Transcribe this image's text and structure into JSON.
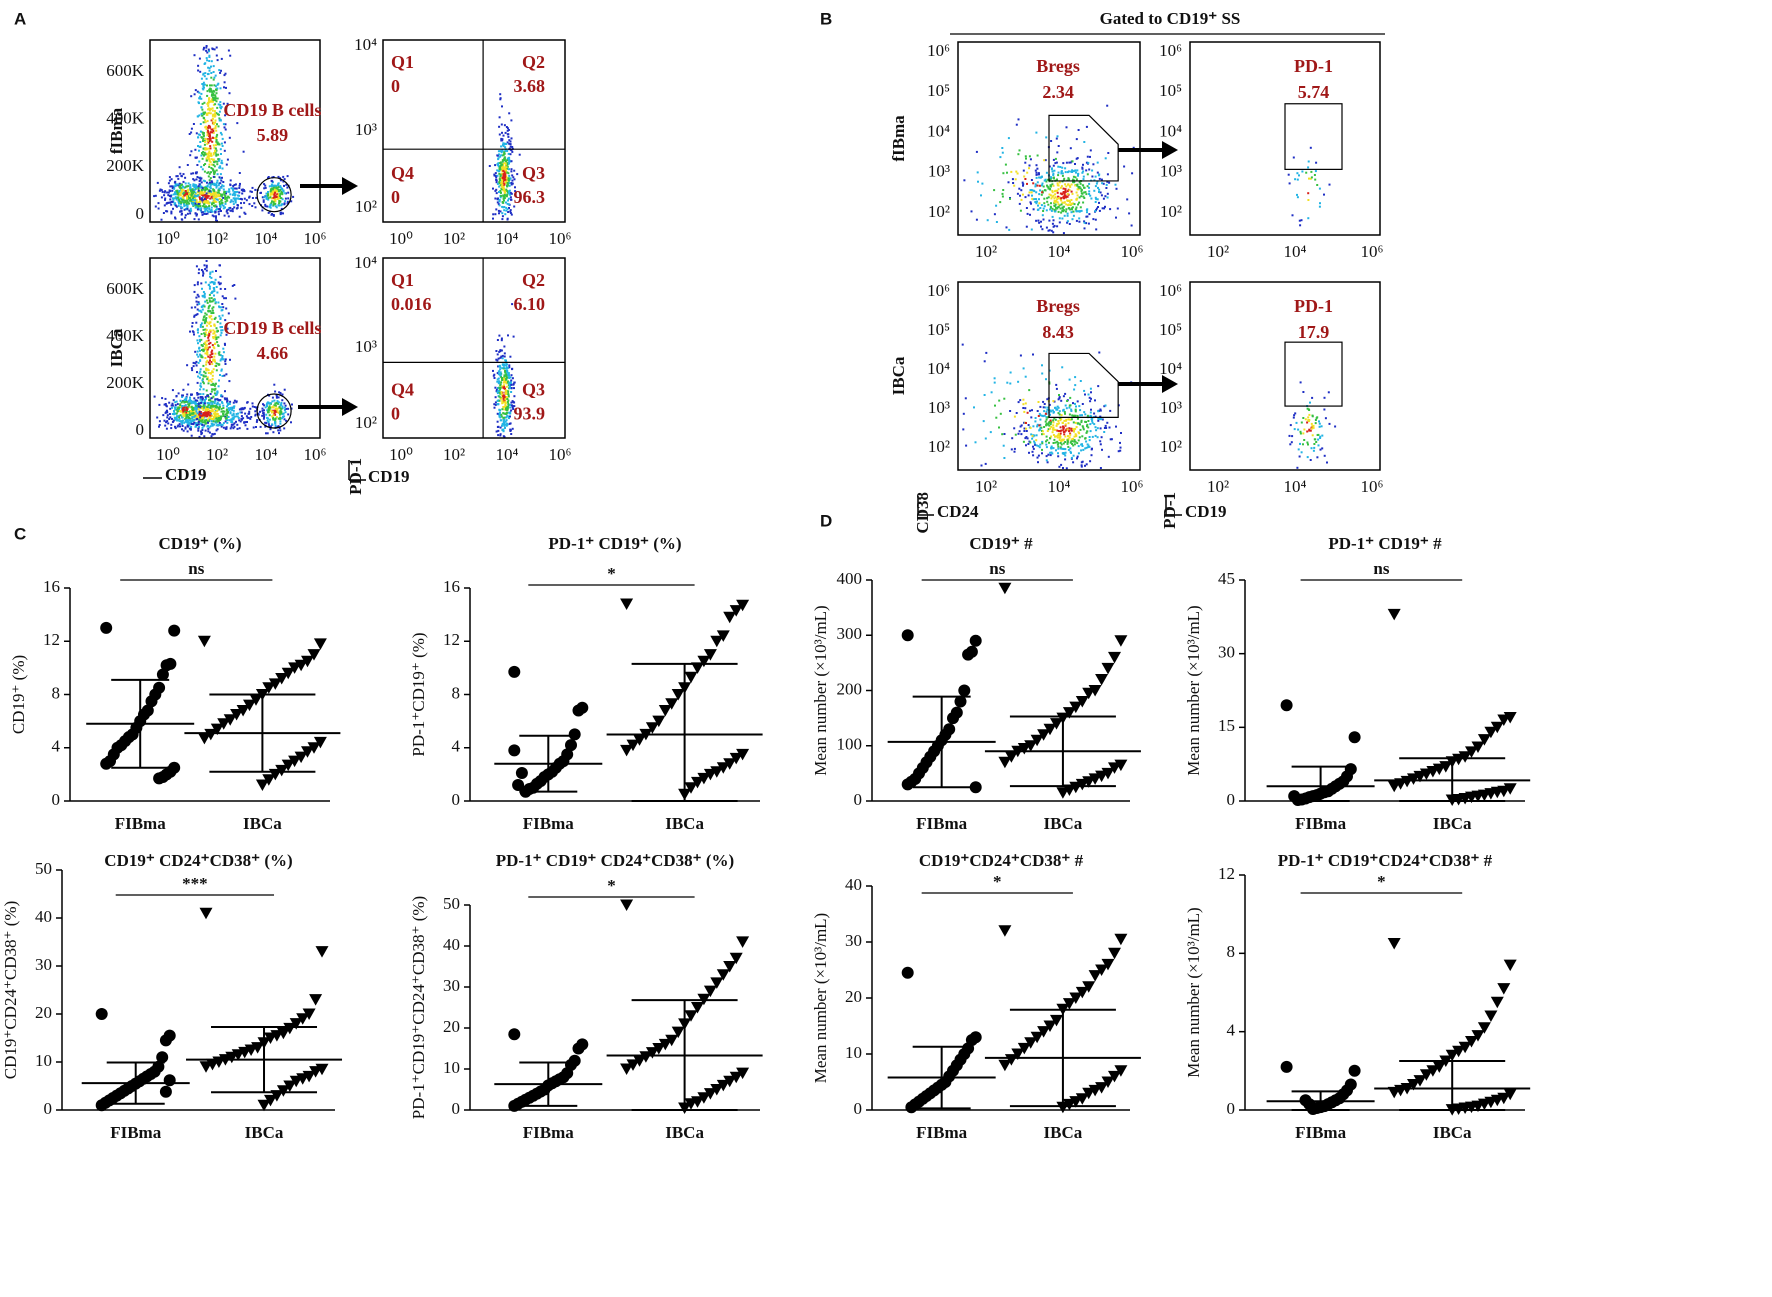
{
  "panel_labels": [
    "A",
    "B",
    "C",
    "D"
  ],
  "flow_a": {
    "rows": [
      "fIBma",
      "IBCa"
    ],
    "gate_yticks": [
      "600K",
      "400K",
      "200K",
      "0"
    ],
    "log_xticks": [
      "10⁰",
      "10²",
      "10⁴",
      "10⁶"
    ],
    "quad_yticks": [
      "10⁴",
      "10³",
      "10²"
    ],
    "axis_gate_x": "CD19",
    "axis_quad_y": "PD-1",
    "axis_quad_x": "CD19",
    "gates": [
      {
        "name": "CD19 B cells",
        "value": "5.89"
      },
      {
        "name": "CD19 B cells",
        "value": "4.66"
      }
    ],
    "quadrants": [
      [
        {
          "name": "Q1",
          "value": "0"
        },
        {
          "name": "Q2",
          "value": "3.68"
        },
        {
          "name": "Q4",
          "value": "0"
        },
        {
          "name": "Q3",
          "value": "96.3"
        }
      ],
      [
        {
          "name": "Q1",
          "value": "0.016"
        },
        {
          "name": "Q2",
          "value": "6.10"
        },
        {
          "name": "Q4",
          "value": "0"
        },
        {
          "name": "Q3",
          "value": "93.9"
        }
      ]
    ]
  },
  "flow_b": {
    "title": "Gated to CD19⁺ SS",
    "rows": [
      "fIBma",
      "IBCa"
    ],
    "log_yticks": [
      "10⁶",
      "10⁵",
      "10⁴",
      "10³",
      "10²"
    ],
    "log_xticks": [
      "10²",
      "10⁴",
      "10⁶"
    ],
    "axis_left_y": "CD38",
    "axis_left_x": "CD24",
    "axis_right_y": "PD-1",
    "axis_right_x": "CD19",
    "gates": [
      [
        {
          "name": "Bregs",
          "value": "2.34"
        },
        {
          "name": "PD-1",
          "value": "5.74"
        }
      ],
      [
        {
          "name": "Bregs",
          "value": "8.43"
        },
        {
          "name": "PD-1",
          "value": "17.9"
        }
      ]
    ]
  },
  "chart_data": [
    {
      "type": "dotplot",
      "title": "CD19⁺ (%)",
      "y_label": "CD19⁺ (%)",
      "annotation": "ns",
      "categories": [
        "FIBma",
        "IBCa"
      ],
      "ylim": [
        0,
        16
      ],
      "yticks": [
        0,
        4,
        8,
        12,
        16
      ],
      "groups": [
        {
          "mean": 5.8,
          "sd": 3.3,
          "values": [
            13,
            12.8,
            10.3,
            10.2,
            9.5,
            8.5,
            8,
            7.5,
            6.8,
            6.5,
            6,
            5.5,
            5,
            4.8,
            4.5,
            4.2,
            4,
            3.5,
            3,
            2.8,
            2.5,
            2.2,
            2,
            1.8,
            1.7
          ]
        },
        {
          "mean": 5.1,
          "sd": 2.9,
          "values": [
            12,
            11.8,
            11,
            10.5,
            10.2,
            10,
            9.6,
            9.2,
            8.8,
            8.5,
            8,
            7.6,
            7.2,
            6.8,
            6.5,
            6.1,
            5.8,
            5.4,
            5,
            4.7,
            4.4,
            4,
            3.7,
            3.3,
            3,
            2.7,
            2.3,
            2,
            1.6,
            1.2
          ]
        }
      ]
    },
    {
      "type": "dotplot",
      "title": "PD-1⁺ CD19⁺ (%)",
      "y_label": "PD-1⁺CD19⁺ (%)",
      "annotation": "*",
      "categories": [
        "FIBma",
        "IBCa"
      ],
      "ylim": [
        0,
        16
      ],
      "yticks": [
        0,
        4,
        8,
        12,
        16
      ],
      "groups": [
        {
          "mean": 2.8,
          "sd": 2.1,
          "values": [
            9.7,
            7,
            6.8,
            5,
            4.2,
            3.5,
            3,
            2.8,
            2.5,
            2.2,
            2,
            1.8,
            1.5,
            1.3,
            1,
            0.9,
            0.7,
            2.1,
            1.2,
            3.8
          ]
        },
        {
          "mean": 5,
          "sd": 5.3,
          "values": [
            14.8,
            14.7,
            14.3,
            13.8,
            12.4,
            12,
            11,
            10.5,
            10,
            9.3,
            8.5,
            8,
            7.3,
            6.8,
            6,
            5.5,
            5,
            4.6,
            4.2,
            3.8,
            3.5,
            3.2,
            2.8,
            2.5,
            2.2,
            2,
            1.7,
            1.4,
            1,
            0.5
          ]
        }
      ]
    },
    {
      "type": "dotplot",
      "title": "CD19⁺ #",
      "y_label": "Mean number (×10³/mL)",
      "annotation": "ns",
      "categories": [
        "FIBma",
        "IBCa"
      ],
      "ylim": [
        0,
        400
      ],
      "yticks": [
        0,
        100,
        200,
        300,
        400
      ],
      "groups": [
        {
          "mean": 107,
          "sd": 82,
          "values": [
            300,
            290,
            270,
            265,
            200,
            180,
            160,
            150,
            130,
            120,
            110,
            100,
            90,
            80,
            70,
            60,
            50,
            40,
            35,
            30,
            25
          ]
        },
        {
          "mean": 90,
          "sd": 63,
          "values": [
            385,
            290,
            260,
            240,
            220,
            200,
            195,
            180,
            170,
            160,
            150,
            140,
            130,
            120,
            110,
            100,
            95,
            90,
            80,
            70,
            65,
            60,
            50,
            45,
            40,
            35,
            30,
            25,
            20,
            15
          ]
        }
      ]
    },
    {
      "type": "dotplot",
      "title": "PD-1⁺ CD19⁺ #",
      "y_label": "Mean number (×10³/mL)",
      "annotation": "ns",
      "categories": [
        "FIBma",
        "IBCa"
      ],
      "ylim": [
        0,
        45
      ],
      "yticks": [
        0,
        15,
        30,
        45
      ],
      "groups": [
        {
          "mean": 3,
          "sd": 4,
          "values": [
            19.5,
            13,
            6.5,
            5,
            4,
            3.5,
            3,
            2.5,
            2,
            1.8,
            1.5,
            1.2,
            1,
            0.8,
            0.5,
            0.3,
            0.2,
            1
          ]
        },
        {
          "mean": 4.2,
          "sd": 4.5,
          "values": [
            38,
            17,
            16.5,
            15,
            14,
            12.5,
            11,
            10,
            9,
            8.5,
            8,
            7,
            6.5,
            6,
            5.5,
            5,
            4.5,
            4,
            3.5,
            3,
            2.5,
            2,
            1.8,
            1.5,
            1.2,
            1,
            0.8,
            0.5,
            0.3,
            0.2
          ]
        }
      ]
    },
    {
      "type": "dotplot",
      "title": "CD19⁺ CD24⁺CD38⁺ (%)",
      "y_label": "CD19⁺CD24⁺CD38⁺ (%)",
      "annotation": "***",
      "categories": [
        "FIBma",
        "IBCa"
      ],
      "ylim": [
        0,
        50
      ],
      "yticks": [
        0,
        10,
        20,
        30,
        40,
        50
      ],
      "groups": [
        {
          "mean": 5.6,
          "sd": 4.3,
          "values": [
            20,
            15.5,
            14.5,
            11,
            9,
            8,
            7.5,
            7,
            6.5,
            6,
            5.5,
            5,
            4.5,
            4,
            3.5,
            3,
            2.5,
            2,
            1.5,
            1,
            6.2,
            3.8
          ]
        },
        {
          "mean": 10.5,
          "sd": 6.8,
          "values": [
            41,
            33,
            23,
            20,
            19,
            18,
            17,
            16,
            15.5,
            15,
            14,
            13,
            12.5,
            12,
            11.5,
            11,
            10.5,
            10,
            9.5,
            9,
            8.5,
            8,
            7,
            6.5,
            6,
            5,
            4,
            3,
            2,
            1
          ]
        }
      ]
    },
    {
      "type": "dotplot",
      "title": "PD-1⁺ CD19⁺ CD24⁺CD38⁺ (%)",
      "y_label": "PD-1⁺CD19⁺CD24⁺CD38⁺ (%)",
      "annotation": "*",
      "categories": [
        "FIBma",
        "IBCa"
      ],
      "ylim": [
        0,
        50
      ],
      "yticks": [
        0,
        10,
        20,
        30,
        40,
        50
      ],
      "groups": [
        {
          "mean": 6.3,
          "sd": 5.3,
          "values": [
            18.5,
            16,
            15,
            12,
            11,
            9,
            8,
            7.5,
            7,
            6.5,
            6,
            5,
            4.5,
            4,
            3.5,
            3,
            2.5,
            2,
            1.5,
            1
          ]
        },
        {
          "mean": 13.3,
          "sd": 13.5,
          "values": [
            50,
            41,
            37,
            35,
            33,
            31,
            29,
            27,
            25,
            23,
            21,
            19,
            17,
            16,
            15,
            14,
            13,
            12,
            11,
            10,
            9,
            8,
            7,
            6,
            5,
            4,
            3,
            2,
            1.5,
            0.5
          ]
        }
      ]
    },
    {
      "type": "dotplot",
      "title": "CD19⁺CD24⁺CD38⁺ #",
      "y_label": "Mean number (×10³/mL)",
      "annotation": "*",
      "categories": [
        "FIBma",
        "IBCa"
      ],
      "ylim": [
        0,
        40
      ],
      "yticks": [
        0,
        10,
        20,
        30,
        40
      ],
      "groups": [
        {
          "mean": 5.8,
          "sd": 5.5,
          "values": [
            24.5,
            13,
            12.5,
            11,
            10,
            9,
            8,
            7,
            6,
            5,
            4.5,
            4,
            3.5,
            3,
            2.5,
            2,
            1.5,
            1,
            0.5
          ]
        },
        {
          "mean": 9.3,
          "sd": 8.6,
          "values": [
            32,
            30.5,
            28,
            26,
            25,
            24,
            22,
            21,
            20,
            19,
            18,
            16,
            15,
            14,
            13,
            12,
            11,
            10,
            9,
            8,
            7,
            6,
            5,
            4,
            3.5,
            3,
            2,
            1.5,
            1,
            0.5
          ]
        }
      ]
    },
    {
      "type": "dotplot",
      "title": "PD-1⁺ CD19⁺CD24⁺CD38⁺ #",
      "y_label": "Mean number (×10³/mL)",
      "annotation": "*",
      "categories": [
        "FIBma",
        "IBCa"
      ],
      "ylim": [
        0,
        12
      ],
      "yticks": [
        0,
        4,
        8,
        12
      ],
      "groups": [
        {
          "mean": 0.45,
          "sd": 0.5,
          "values": [
            2.2,
            2,
            1.3,
            1,
            0.8,
            0.6,
            0.5,
            0.4,
            0.3,
            0.2,
            0.15,
            0.1,
            0.05,
            0.3,
            0.5
          ]
        },
        {
          "mean": 1.1,
          "sd": 1.4,
          "values": [
            8.5,
            7.4,
            6.2,
            5.5,
            4.8,
            4.2,
            3.8,
            3.5,
            3.2,
            3,
            2.8,
            2.5,
            2.2,
            2,
            1.8,
            1.5,
            1.3,
            1.1,
            1,
            0.9,
            0.8,
            0.6,
            0.5,
            0.4,
            0.3,
            0.2,
            0.15,
            0.1,
            0.05,
            0.02
          ]
        }
      ]
    }
  ]
}
